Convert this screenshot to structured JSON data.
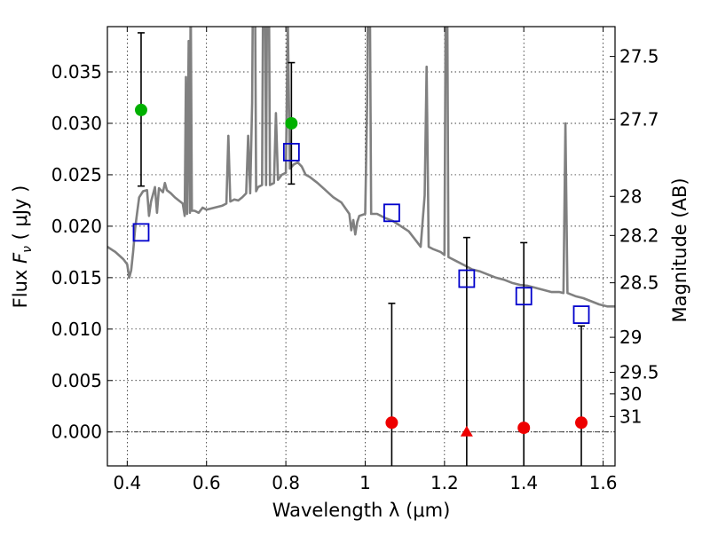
{
  "chart_data": {
    "type": "scatter",
    "xlabel": "Wavelength  λ (μm)",
    "ylabel": "Flux  F_ν  ( μJy )",
    "ylabel_parts": {
      "prefix": "Flux  ",
      "var": "F",
      "sub": "ν",
      "unit": "  ( μJy )"
    },
    "y2label": "Magnitude (AB)",
    "xlim": [
      0.35,
      1.63
    ],
    "ylim": [
      -0.0033,
      0.0394
    ],
    "grid": true,
    "x_ticks": [
      {
        "value": 0.4,
        "label": "0.4"
      },
      {
        "value": 0.6,
        "label": "0.6"
      },
      {
        "value": 0.8,
        "label": "0.8"
      },
      {
        "value": 1.0,
        "label": "1"
      },
      {
        "value": 1.2,
        "label": "1.2"
      },
      {
        "value": 1.4,
        "label": "1.4"
      },
      {
        "value": 1.6,
        "label": "1.6"
      }
    ],
    "y_ticks": [
      {
        "value": 0.0,
        "label": "0.000"
      },
      {
        "value": 0.005,
        "label": "0.005"
      },
      {
        "value": 0.01,
        "label": "0.010"
      },
      {
        "value": 0.015,
        "label": "0.015"
      },
      {
        "value": 0.02,
        "label": "0.020"
      },
      {
        "value": 0.025,
        "label": "0.025"
      },
      {
        "value": 0.03,
        "label": "0.030"
      },
      {
        "value": 0.035,
        "label": "0.035"
      }
    ],
    "mag_ticks": [
      {
        "value": 0.0365,
        "label": "27.5"
      },
      {
        "value": 0.0304,
        "label": "27.7"
      },
      {
        "value": 0.0229,
        "label": "28"
      },
      {
        "value": 0.0191,
        "label": "28.2"
      },
      {
        "value": 0.0145,
        "label": "28.5"
      },
      {
        "value": 0.0092,
        "label": "29"
      },
      {
        "value": 0.0058,
        "label": "29.5"
      },
      {
        "value": 0.0037,
        "label": "30"
      },
      {
        "value": 0.0015,
        "label": "31"
      }
    ],
    "model_spectrum": {
      "color": "#808080",
      "points": [
        [
          0.35,
          0.018
        ],
        [
          0.37,
          0.0175
        ],
        [
          0.39,
          0.0168
        ],
        [
          0.4,
          0.0163
        ],
        [
          0.405,
          0.015
        ],
        [
          0.41,
          0.0157
        ],
        [
          0.415,
          0.0175
        ],
        [
          0.42,
          0.0198
        ],
        [
          0.425,
          0.0213
        ],
        [
          0.43,
          0.0228
        ],
        [
          0.44,
          0.0234
        ],
        [
          0.45,
          0.0235
        ],
        [
          0.455,
          0.021
        ],
        [
          0.46,
          0.0224
        ],
        [
          0.47,
          0.0238
        ],
        [
          0.475,
          0.0213
        ],
        [
          0.48,
          0.0237
        ],
        [
          0.49,
          0.0233
        ],
        [
          0.495,
          0.0242
        ],
        [
          0.5,
          0.0235
        ],
        [
          0.51,
          0.0232
        ],
        [
          0.52,
          0.0228
        ],
        [
          0.53,
          0.0225
        ],
        [
          0.54,
          0.0222
        ],
        [
          0.545,
          0.021
        ],
        [
          0.548,
          0.0345
        ],
        [
          0.551,
          0.0212
        ],
        [
          0.555,
          0.038
        ],
        [
          0.558,
          0.0213
        ],
        [
          0.56,
          0.044
        ],
        [
          0.563,
          0.0215
        ],
        [
          0.57,
          0.0215
        ],
        [
          0.58,
          0.0213
        ],
        [
          0.59,
          0.0218
        ],
        [
          0.6,
          0.0216
        ],
        [
          0.62,
          0.0218
        ],
        [
          0.64,
          0.022
        ],
        [
          0.65,
          0.0222
        ],
        [
          0.655,
          0.0288
        ],
        [
          0.66,
          0.0224
        ],
        [
          0.67,
          0.0226
        ],
        [
          0.68,
          0.0225
        ],
        [
          0.69,
          0.0228
        ],
        [
          0.7,
          0.0232
        ],
        [
          0.705,
          0.0288
        ],
        [
          0.71,
          0.0232
        ],
        [
          0.715,
          0.032
        ],
        [
          0.72,
          0.06
        ],
        [
          0.725,
          0.0234
        ],
        [
          0.73,
          0.0238
        ],
        [
          0.74,
          0.024
        ],
        [
          0.745,
          0.06
        ],
        [
          0.75,
          0.024
        ],
        [
          0.755,
          0.06
        ],
        [
          0.76,
          0.024
        ],
        [
          0.77,
          0.0242
        ],
        [
          0.775,
          0.031
        ],
        [
          0.78,
          0.0245
        ],
        [
          0.79,
          0.025
        ],
        [
          0.8,
          0.0252
        ],
        [
          0.805,
          0.04
        ],
        [
          0.81,
          0.0256
        ],
        [
          0.82,
          0.026
        ],
        [
          0.83,
          0.0262
        ],
        [
          0.84,
          0.0258
        ],
        [
          0.85,
          0.025
        ],
        [
          0.86,
          0.0248
        ],
        [
          0.88,
          0.0242
        ],
        [
          0.9,
          0.0235
        ],
        [
          0.92,
          0.0228
        ],
        [
          0.94,
          0.0223
        ],
        [
          0.96,
          0.0212
        ],
        [
          0.965,
          0.0196
        ],
        [
          0.97,
          0.0206
        ],
        [
          0.975,
          0.0192
        ],
        [
          0.98,
          0.0204
        ],
        [
          0.985,
          0.021
        ],
        [
          1.0,
          0.0212
        ],
        [
          1.005,
          0.032
        ],
        [
          1.01,
          0.055
        ],
        [
          1.015,
          0.0212
        ],
        [
          1.03,
          0.0212
        ],
        [
          1.05,
          0.0208
        ],
        [
          1.07,
          0.0205
        ],
        [
          1.09,
          0.02
        ],
        [
          1.11,
          0.0195
        ],
        [
          1.13,
          0.0185
        ],
        [
          1.14,
          0.018
        ],
        [
          1.15,
          0.023
        ],
        [
          1.155,
          0.0355
        ],
        [
          1.16,
          0.018
        ],
        [
          1.17,
          0.0178
        ],
        [
          1.19,
          0.0175
        ],
        [
          1.2,
          0.0172
        ],
        [
          1.205,
          0.058
        ],
        [
          1.21,
          0.017
        ],
        [
          1.23,
          0.0166
        ],
        [
          1.25,
          0.0162
        ],
        [
          1.27,
          0.0158
        ],
        [
          1.29,
          0.0156
        ],
        [
          1.31,
          0.0153
        ],
        [
          1.33,
          0.015
        ],
        [
          1.35,
          0.0148
        ],
        [
          1.37,
          0.0145
        ],
        [
          1.39,
          0.0143
        ],
        [
          1.41,
          0.0142
        ],
        [
          1.43,
          0.014
        ],
        [
          1.45,
          0.0138
        ],
        [
          1.47,
          0.0136
        ],
        [
          1.49,
          0.0136
        ],
        [
          1.5,
          0.0135
        ],
        [
          1.505,
          0.03
        ],
        [
          1.51,
          0.0135
        ],
        [
          1.53,
          0.0132
        ],
        [
          1.55,
          0.013
        ],
        [
          1.57,
          0.0127
        ],
        [
          1.59,
          0.0124
        ],
        [
          1.61,
          0.0122
        ],
        [
          1.63,
          0.0122
        ]
      ]
    },
    "model_photometry": {
      "marker": "open-square",
      "color": "#0000cc",
      "points": [
        {
          "x": 0.435,
          "y": 0.0194
        },
        {
          "x": 0.814,
          "y": 0.0272
        },
        {
          "x": 1.067,
          "y": 0.0213
        },
        {
          "x": 1.256,
          "y": 0.0149
        },
        {
          "x": 1.4,
          "y": 0.0132
        },
        {
          "x": 1.545,
          "y": 0.0114
        }
      ]
    },
    "detections": {
      "marker": "filled-circle",
      "color": "#00b000",
      "points": [
        {
          "x": 0.435,
          "y": 0.0313,
          "ylow": 0.0239,
          "yhigh": 0.0388
        },
        {
          "x": 0.814,
          "y": 0.03,
          "ylow": 0.0241,
          "yhigh": 0.0359
        }
      ]
    },
    "upper_limits": {
      "marker": "filled-circle",
      "color": "#ee0000",
      "points": [
        {
          "x": 1.067,
          "y": 0.0009,
          "ylow": -0.004,
          "yhigh": 0.0125,
          "marker": "circle"
        },
        {
          "x": 1.256,
          "y": 0.0,
          "ylow": -0.004,
          "yhigh": 0.0189,
          "marker": "triangle"
        },
        {
          "x": 1.4,
          "y": 0.0004,
          "ylow": -0.004,
          "yhigh": 0.0184,
          "marker": "circle"
        },
        {
          "x": 1.545,
          "y": 0.0009,
          "ylow": -0.004,
          "yhigh": 0.0103,
          "marker": "circle"
        }
      ]
    }
  }
}
